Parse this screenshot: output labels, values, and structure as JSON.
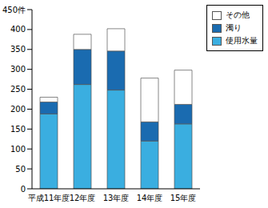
{
  "chart_data": {
    "type": "bar",
    "stacked": true,
    "categories": [
      "平成11年度",
      "12年度",
      "13年度",
      "14年度",
      "15年度"
    ],
    "series": [
      {
        "name": "使用水量",
        "color": "#3aaee0",
        "values": [
          188,
          262,
          248,
          120,
          163
        ]
      },
      {
        "name": "濁り",
        "color": "#1a6bb0",
        "values": [
          30,
          88,
          98,
          48,
          49
        ]
      },
      {
        "name": "その他",
        "color": "#ffffff",
        "values": [
          12,
          38,
          56,
          110,
          86
        ]
      }
    ],
    "ylim": [
      0,
      450
    ],
    "yticks": [
      0,
      50,
      100,
      150,
      200,
      250,
      300,
      350,
      400,
      {
        "value": 450,
        "label": "450件"
      }
    ],
    "grid": false,
    "legend": "right"
  }
}
